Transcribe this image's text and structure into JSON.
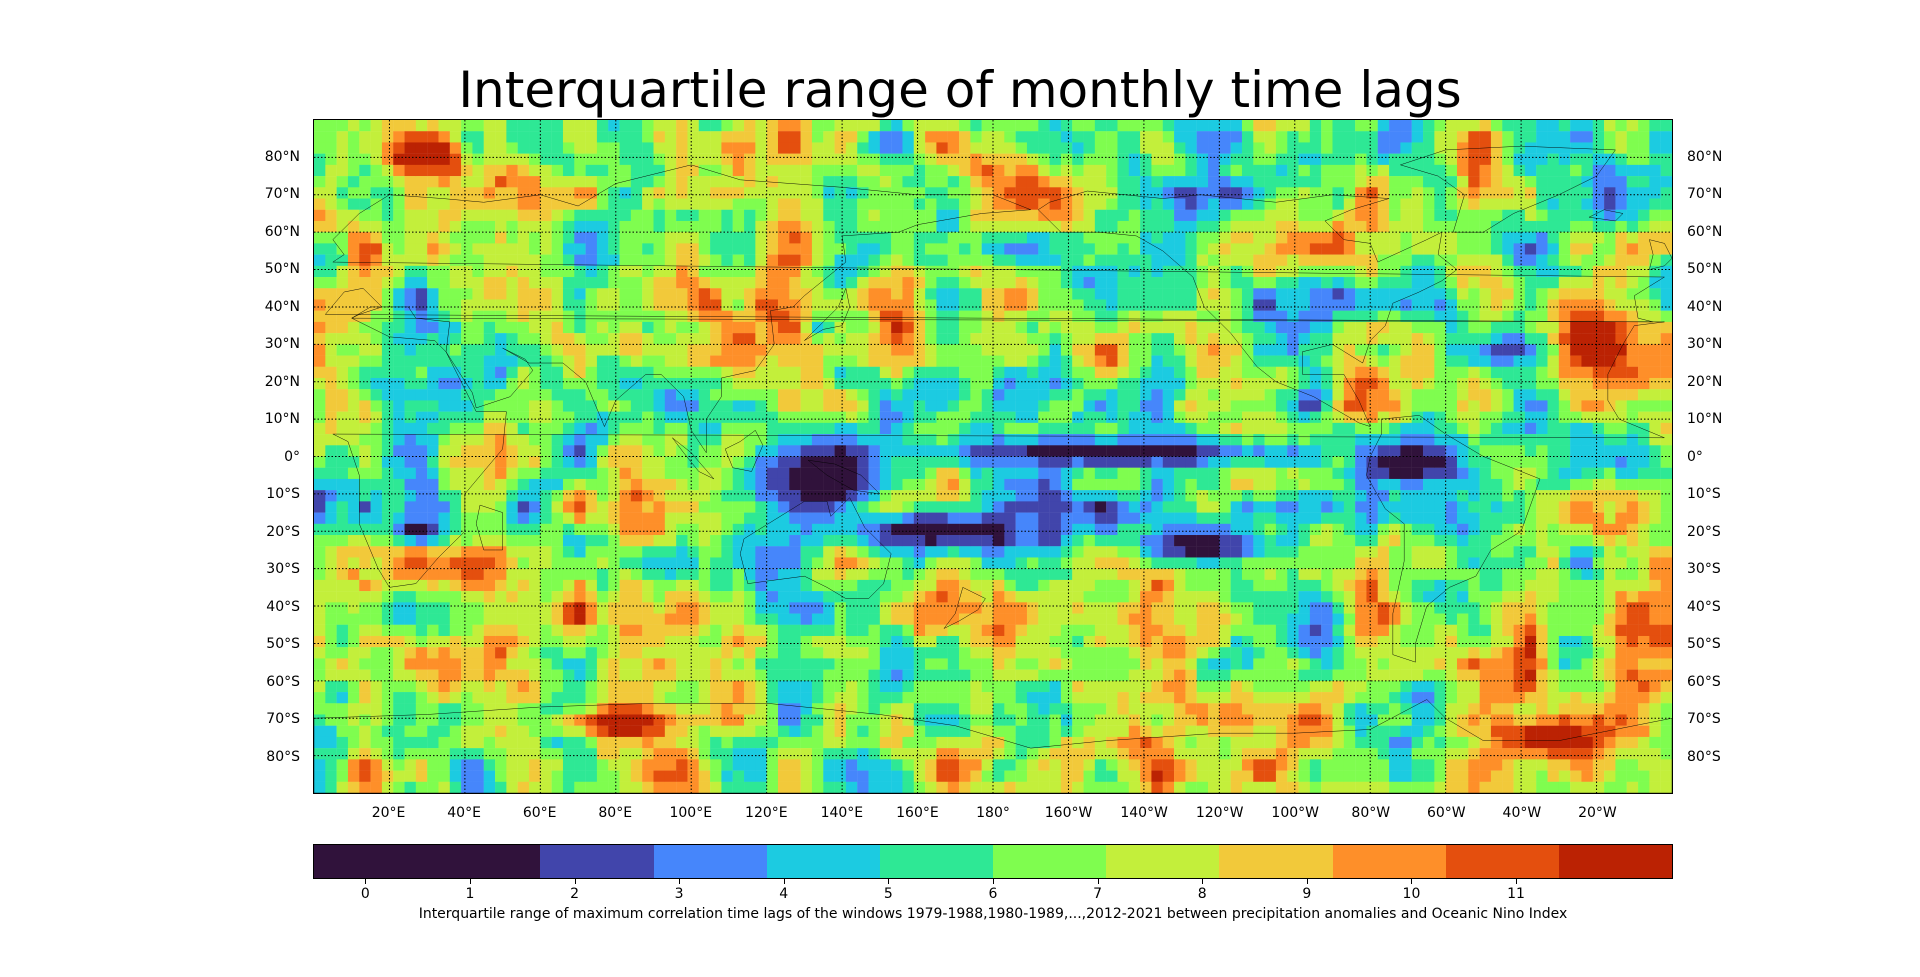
{
  "title": "Interquartile range of monthly time lags",
  "map": {
    "projection": "equirectangular",
    "lon_range": [
      0,
      360
    ],
    "lat_range": [
      -90,
      90
    ],
    "gridlines": "dotted",
    "lat_labels": [
      "80°N",
      "70°N",
      "60°N",
      "50°N",
      "40°N",
      "30°N",
      "20°N",
      "10°N",
      "0°",
      "10°S",
      "20°S",
      "30°S",
      "40°S",
      "50°S",
      "60°S",
      "70°S",
      "80°S"
    ],
    "lat_values": [
      80,
      70,
      60,
      50,
      40,
      30,
      20,
      10,
      0,
      -10,
      -20,
      -30,
      -40,
      -50,
      -60,
      -70,
      -80
    ],
    "lon_labels": [
      "20°E",
      "40°E",
      "60°E",
      "80°E",
      "100°E",
      "120°E",
      "140°E",
      "160°E",
      "180°",
      "160°W",
      "140°W",
      "120°W",
      "100°W",
      "80°W",
      "60°W",
      "40°W",
      "20°W"
    ],
    "lon_values": [
      20,
      40,
      60,
      80,
      100,
      120,
      140,
      160,
      180,
      200,
      220,
      240,
      260,
      280,
      300,
      320,
      340
    ]
  },
  "colorbar": {
    "levels": [
      "0",
      "1",
      "2",
      "3",
      "4",
      "5",
      "6",
      "7",
      "8",
      "9",
      "10",
      "11"
    ],
    "segment_weights": [
      2,
      1,
      1,
      1,
      1,
      1,
      1,
      1,
      1,
      1,
      1,
      1
    ],
    "colors": [
      "#30123b",
      "#4145ab",
      "#4686fb",
      "#1ccbe1",
      "#2ee895",
      "#7ffd4f",
      "#c3ef3b",
      "#f2c93a",
      "#fe8f29",
      "#e44f0e",
      "#bb2203"
    ],
    "caption": "Interquartile range of maximum correlation time lags of the windows 1979-1988,1980-1989,...,2012-2021 between precipitation anomalies and Oceanic Nino Index"
  },
  "palette": {
    "ocean_base": "#7ffd4f",
    "coastline": "#000000",
    "grid": "#000000"
  }
}
